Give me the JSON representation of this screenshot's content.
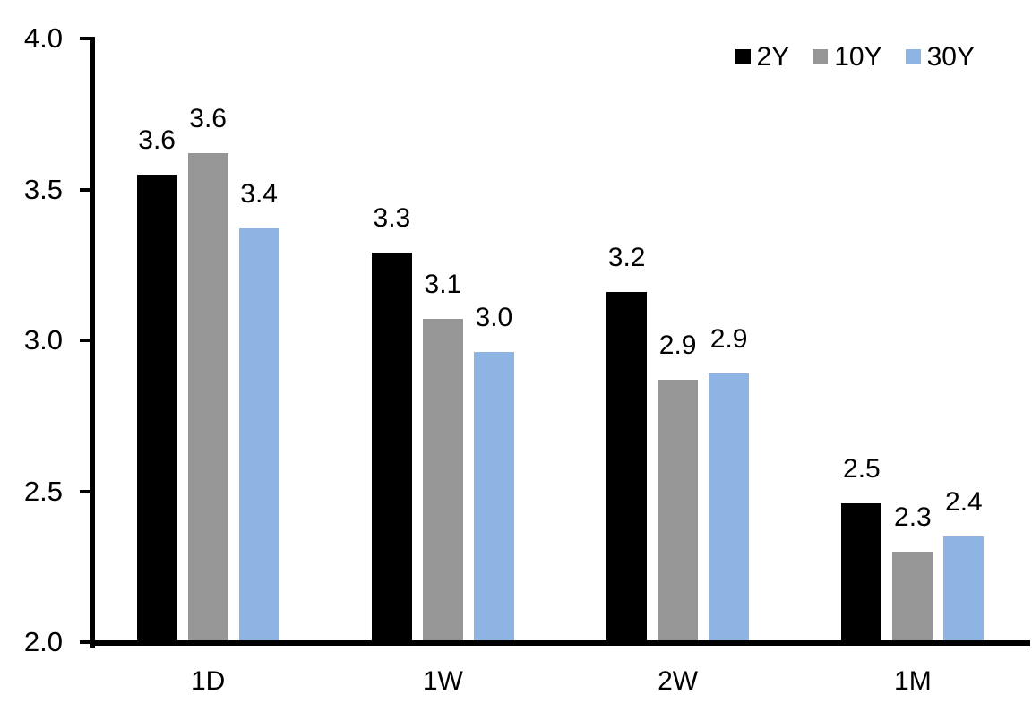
{
  "chart_data": {
    "type": "bar",
    "title": "",
    "xlabel": "",
    "ylabel": "",
    "categories": [
      "1D",
      "1W",
      "2W",
      "1M"
    ],
    "series": [
      {
        "name": "2Y",
        "color": "#000000",
        "values": [
          3.55,
          3.29,
          3.16,
          2.46
        ],
        "labels": [
          "3.6",
          "3.3",
          "3.2",
          "2.5"
        ]
      },
      {
        "name": "10Y",
        "color": "#969696",
        "values": [
          3.62,
          3.07,
          2.87,
          2.3
        ],
        "labels": [
          "3.6",
          "3.1",
          "2.9",
          "2.3"
        ]
      },
      {
        "name": "30Y",
        "color": "#8DB4E2",
        "values": [
          3.37,
          2.96,
          2.89,
          2.35
        ],
        "labels": [
          "3.4",
          "3.0",
          "2.9",
          "2.4"
        ]
      }
    ],
    "y_axis": {
      "min": 2.0,
      "max": 4.0,
      "step": 0.5,
      "tick_labels": [
        "2.0",
        "2.5",
        "3.0",
        "3.5",
        "4.0"
      ]
    },
    "legend": {
      "position": "top-right",
      "entries": [
        "2Y",
        "10Y",
        "30Y"
      ]
    },
    "grid": false,
    "background_color": "#FFFFFF",
    "axis_color": "#000000"
  }
}
